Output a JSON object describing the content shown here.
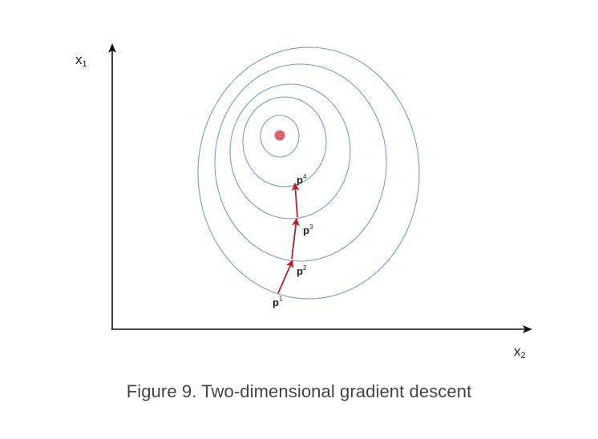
{
  "axes": {
    "vertical": {
      "base": "x",
      "sub": "1"
    },
    "horizontal": {
      "base": "x",
      "sub": "2"
    }
  },
  "points": [
    {
      "base": "p",
      "sup": "1"
    },
    {
      "base": "p",
      "sup": "2"
    },
    {
      "base": "p",
      "sup": "3"
    },
    {
      "base": "p",
      "sup": "4"
    }
  ],
  "colors": {
    "contour": "#7d9bbb",
    "arrow": "#b0202a",
    "minimum": "#d9646d",
    "axis": "#111111"
  },
  "caption": "Figure 9. Two-dimensional gradient descent"
}
